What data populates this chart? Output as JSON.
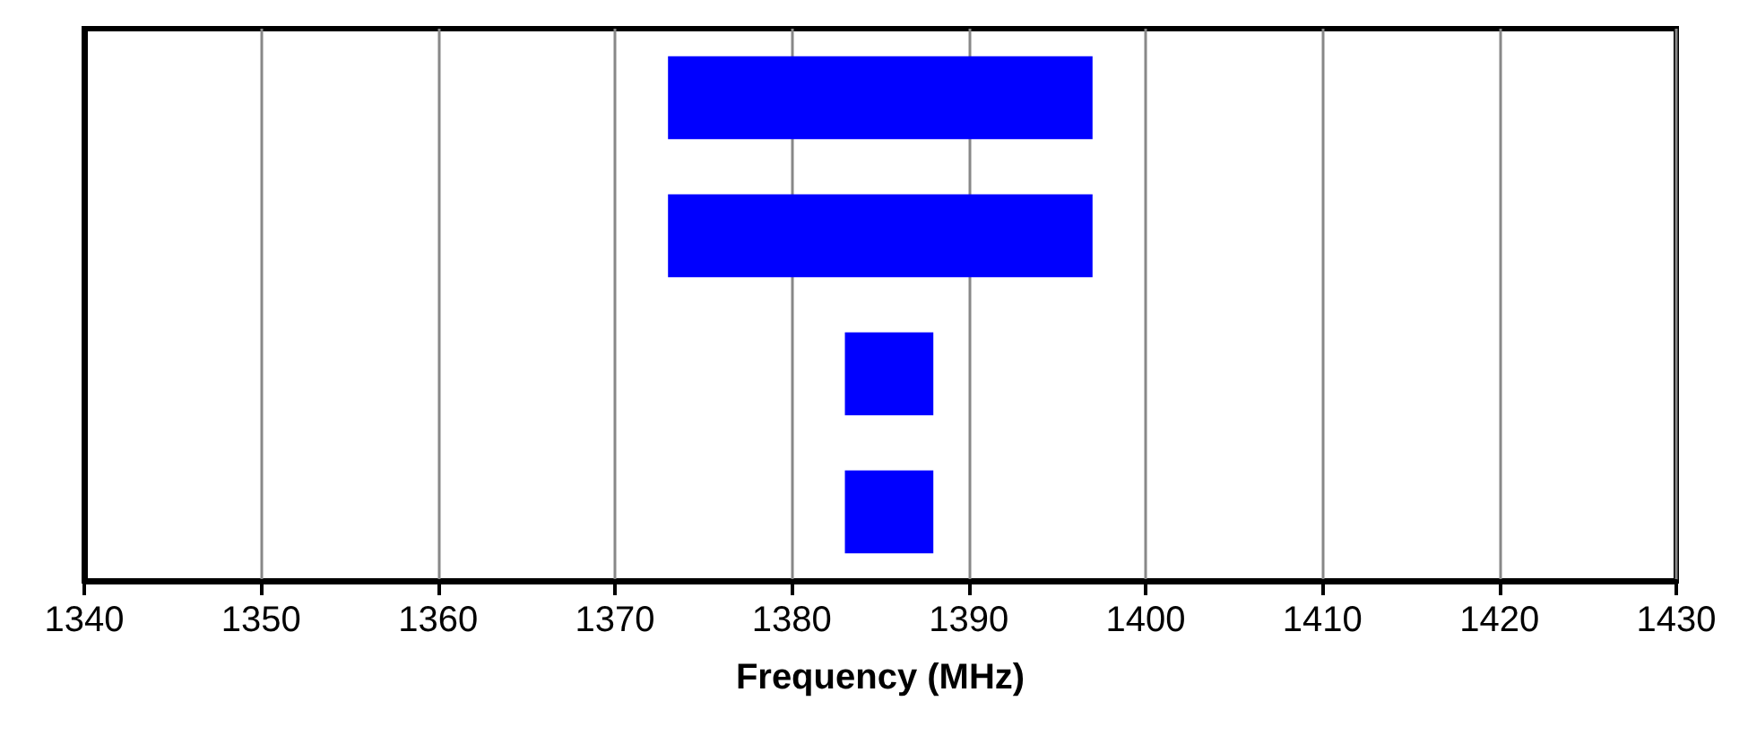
{
  "chart_data": {
    "type": "bar",
    "orientation": "horizontal",
    "xlabel": "Frequency (MHz)",
    "categories": [
      null,
      null,
      null,
      null
    ],
    "series": [
      {
        "color": "#0000ff",
        "values": [
          24,
          24,
          5,
          5
        ],
        "base": [
          1373,
          1373,
          1383,
          1383
        ]
      }
    ],
    "xlim": [
      1340,
      1430
    ],
    "xticks": [
      1340,
      1350,
      1360,
      1370,
      1380,
      1390,
      1400,
      1410,
      1420,
      1430
    ],
    "grid": "x"
  }
}
